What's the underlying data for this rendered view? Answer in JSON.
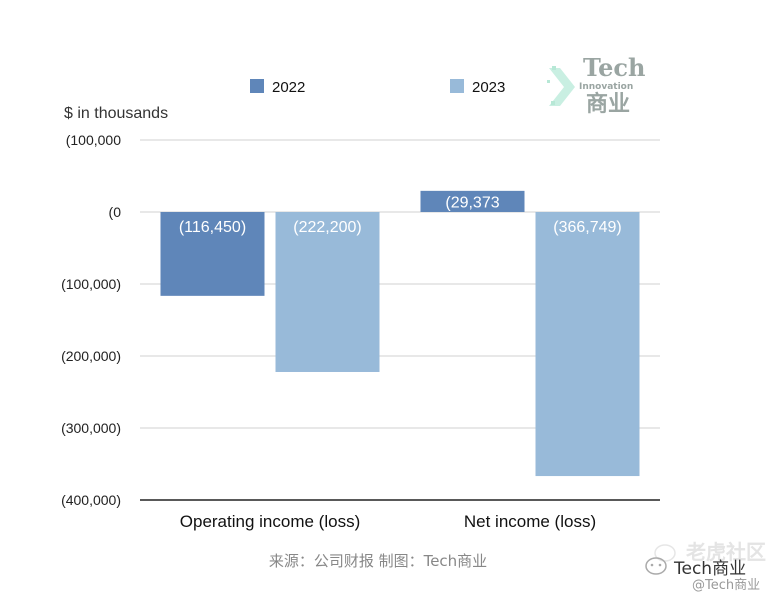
{
  "chart_data": {
    "type": "bar",
    "categories": [
      "Operating income (loss)",
      "Net income (loss)"
    ],
    "series": [
      {
        "name": "2022",
        "values": [
          -116450,
          29373
        ],
        "labels": [
          "(116,450)",
          "(29,373"
        ],
        "color": "#5f86b9"
      },
      {
        "name": "2023",
        "values": [
          -222200,
          -366749
        ],
        "labels": [
          "(222,200)",
          "(366,749)"
        ],
        "color": "#98bad9"
      }
    ],
    "ylim": [
      -400000,
      100000
    ],
    "yticks": [
      100000,
      0,
      -100000,
      -200000,
      -300000,
      -400000
    ],
    "ytick_labels": [
      "(100,000",
      "(0",
      "(100,000)",
      "(200,000)",
      "(300,000)",
      "(400,000)"
    ],
    "ylabel": "$ in thousands",
    "grid": true,
    "legend_position": "top",
    "gridline_color": "#d0d0d0",
    "axis_color": "#222222"
  },
  "source": "来源：公司财报 制图：Tech商业",
  "logo": {
    "tech": "Tech",
    "innovation": "Innovation",
    "cn": "商业"
  },
  "watermark": {
    "cn": "老虎社区",
    "main": "Tech商业",
    "sub": "@Tech商业"
  }
}
